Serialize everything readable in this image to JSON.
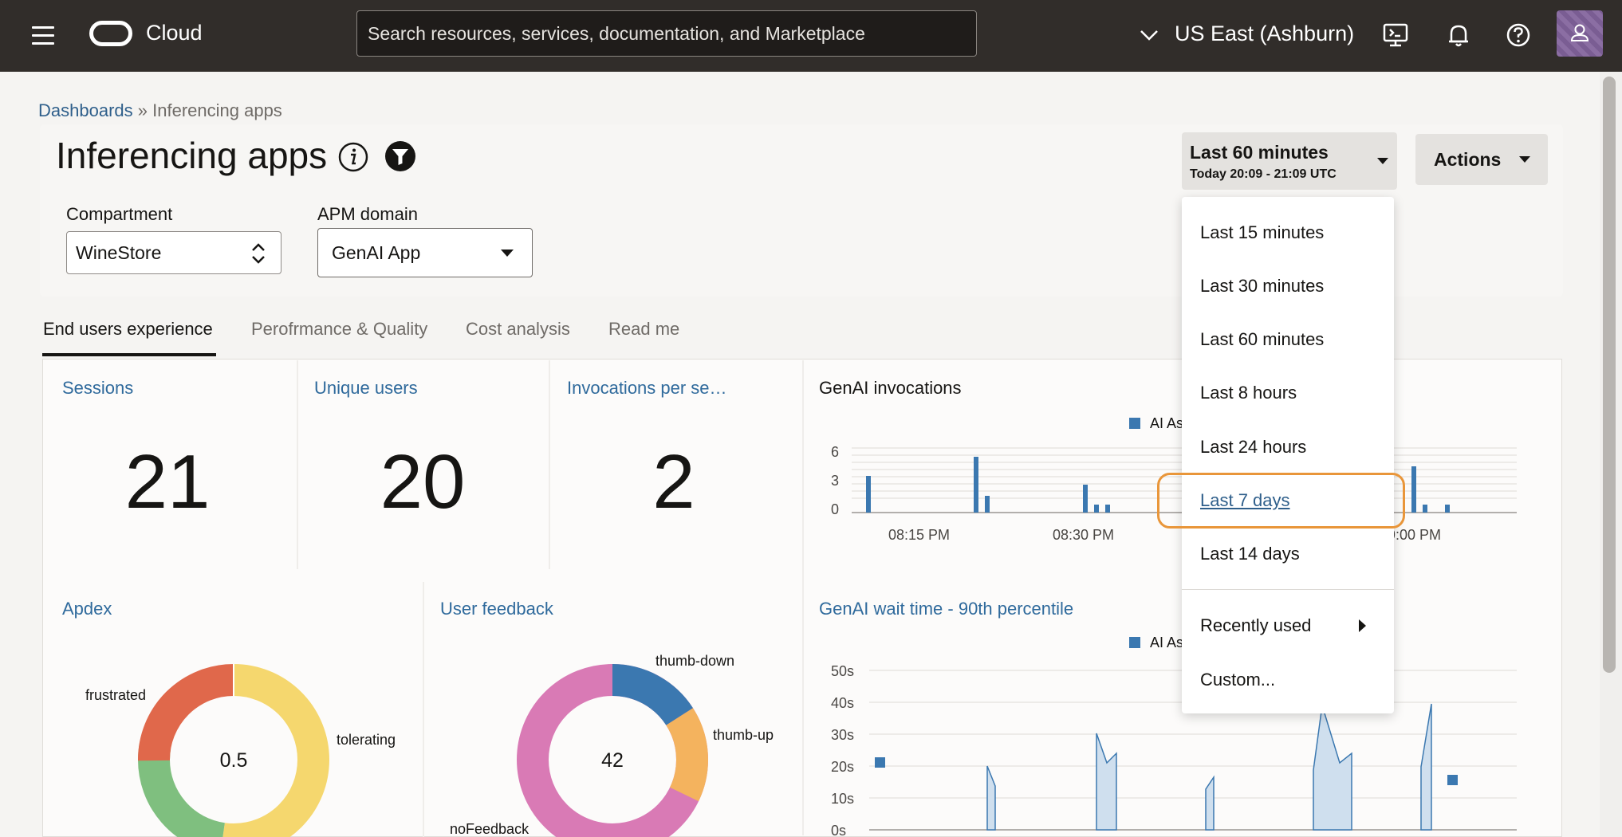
{
  "topbar": {
    "brand": "Cloud",
    "search_placeholder": "Search resources, services, documentation, and Marketplace",
    "region": "US East (Ashburn)"
  },
  "breadcrumb": {
    "root": "Dashboards",
    "separator": "»",
    "current": "Inferencing apps"
  },
  "page": {
    "title": "Inferencing apps"
  },
  "filters": {
    "compartment_label": "Compartment",
    "compartment_value": "WineStore",
    "apm_label": "APM domain",
    "apm_value": "GenAI App"
  },
  "time_range": {
    "label": "Last 60 minutes",
    "sub": "Today 20:09 - 21:09 UTC"
  },
  "actions_label": "Actions",
  "tabs": [
    {
      "label": "End users experience",
      "active": true
    },
    {
      "label": "Perofrmance & Quality",
      "active": false
    },
    {
      "label": "Cost analysis",
      "active": false
    },
    {
      "label": "Read me",
      "active": false
    }
  ],
  "metrics": {
    "sessions": {
      "title": "Sessions",
      "value": "21"
    },
    "unique_users": {
      "title": "Unique users",
      "value": "20"
    },
    "invocations": {
      "title": "Invocations per se…",
      "value": "2"
    }
  },
  "genai_invocations": {
    "title": "GenAI invocations",
    "legend": "AI As",
    "y_ticks": [
      "6",
      "3",
      "0"
    ],
    "x_ticks": [
      "08:15 PM",
      "08:30 PM",
      "9:00 PM"
    ]
  },
  "apdex": {
    "title": "Apdex",
    "center": "0.5",
    "labels": {
      "frustrated": "frustrated",
      "tolerating": "tolerating"
    }
  },
  "user_feedback": {
    "title": "User feedback",
    "center": "42",
    "labels": {
      "down": "thumb-down",
      "up": "thumb-up",
      "none": "noFeedback"
    }
  },
  "wait_time": {
    "title": "GenAI wait time - 90th percentile",
    "legend": "AI As",
    "y_ticks": [
      "50s",
      "40s",
      "30s",
      "20s",
      "10s",
      "0s"
    ]
  },
  "time_menu": {
    "items": [
      "Last 15 minutes",
      "Last 30 minutes",
      "Last 60 minutes",
      "Last 8 hours",
      "Last 24 hours",
      "Last 7 days",
      "Last 14 days"
    ],
    "recently_used": "Recently used",
    "custom": "Custom...",
    "highlighted_index": 5
  },
  "colors": {
    "topbar": "#312d2a",
    "link": "#2f6a9c",
    "bar": "#3b78b0",
    "highlight_ring": "#e9963a",
    "apdex_frustrated": "#e0684b",
    "apdex_tolerating": "#f5d76e",
    "apdex_satisfied": "#7fbf7f",
    "fb_down": "#3b78b0",
    "fb_up": "#f4b35e",
    "fb_none": "#d97ab5"
  },
  "icons": [
    "hamburger-icon",
    "oracle-logo-icon",
    "chevron-down-icon",
    "cloud-shell-icon",
    "bell-icon",
    "help-icon",
    "user-icon",
    "info-icon",
    "filter-icon",
    "caret-down-icon",
    "caret-right-icon"
  ]
}
